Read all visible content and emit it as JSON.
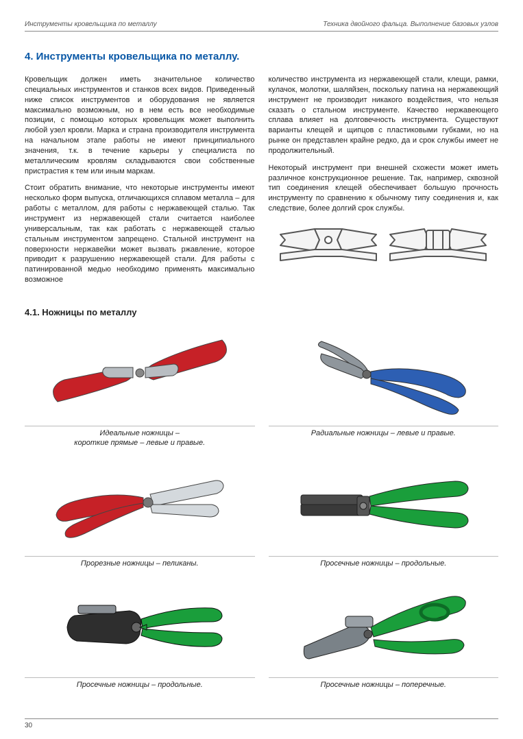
{
  "header": {
    "left": "Инструменты кровельщика по металлу",
    "right": "Техника двойного фальца. Выполнение базовых узлов"
  },
  "section": {
    "title": "4. Инструменты кровельщика по металлу.",
    "title_color": "#0857a6"
  },
  "body": {
    "left": {
      "p1": "Кровельщик должен иметь значительное количество специальных инструментов и станков всех видов. Приведенный ниже список инструментов и оборудования не является максимально возможным, но в нем есть все необходимые позиции, с помощью которых кровельщик может выполнить любой узел кровли. Марка и страна производителя инструмента на начальном этапе работы не имеют принципиального значения, т.к. в течение карьеры у специалиста по металлическим кровлям складываются свои собственные пристрастия к тем или иным маркам.",
      "p2": "Стоит обратить внимание, что некоторые инструменты имеют несколько форм выпуска, отличающихся сплавом металла – для работы с металлом, для работы с нержавеющей сталью. Так инструмент из нержавеющей стали считается наиболее универсальным, так как работать с нержавеющей сталью стальным инструментом запрещено. Стальной инструмент на поверхности нержавейки может вызвать ржавление, которое приводит к разрушению нержавеющей стали. Для работы с патинированной медью необходимо применять максимально возможное"
    },
    "right": {
      "p1": "количество инструмента из нержавеющей стали, клещи, рамки, кулачок, молотки, шаляйзен, поскольку патина на нержавеющий инструмент не производит никакого воздействия, что нельзя сказать о стальном инструменте. Качество нержавеющего сплава влияет на долговечность инструмента. Существуют варианты клещей и щипцов с пластиковыми губками, но на рынке он представлен крайне редко, да и срок службы имеет не продолжительный.",
      "p2": "Некоторый инструмент при внешней схожести может иметь различное конструкционное решение. Так, например, сквозной тип соединения клещей обеспечивает большую прочность инструменту по сравнению к обычному типу соединения и, как следствие, более долгий срок службы."
    }
  },
  "diagram": {
    "stroke": "#555555",
    "fill": "#f4f4f4"
  },
  "subsection": {
    "title": "4.1. Ножницы по металлу"
  },
  "tools": [
    {
      "caption": "Идеальные ножницы –\nкороткие прямые – левые и правые.",
      "primary_color": "#c62127",
      "secondary_color": "#9aa0a6",
      "type": "scissors_red"
    },
    {
      "caption": "Радиальные ножницы – левые и правые.",
      "primary_color": "#2d5fb3",
      "secondary_color": "#9aa0a6",
      "type": "scissors_blue"
    },
    {
      "caption": "Прорезные ножницы – пеликаны.",
      "primary_color": "#c62127",
      "secondary_color": "#c8cdd2",
      "type": "pelican"
    },
    {
      "caption": "Просечные ножницы – продольные.",
      "primary_color": "#1a9e3b",
      "secondary_color": "#3a3a3a",
      "type": "nibbler_green1"
    },
    {
      "caption": "Просечные ножницы – продольные.",
      "primary_color": "#1a9e3b",
      "secondary_color": "#3a3a3a",
      "type": "nibbler_dark"
    },
    {
      "caption": "Просечные ножницы – поперечные.",
      "primary_color": "#1a9e3b",
      "secondary_color": "#6a6e72",
      "type": "nibbler_green2"
    }
  ],
  "page_number": "30",
  "style": {
    "body_fontsize": 11,
    "caption_fontsize": 11,
    "title_fontsize": 15,
    "text_color": "#222222",
    "rule_color": "#888888",
    "background": "#ffffff"
  }
}
